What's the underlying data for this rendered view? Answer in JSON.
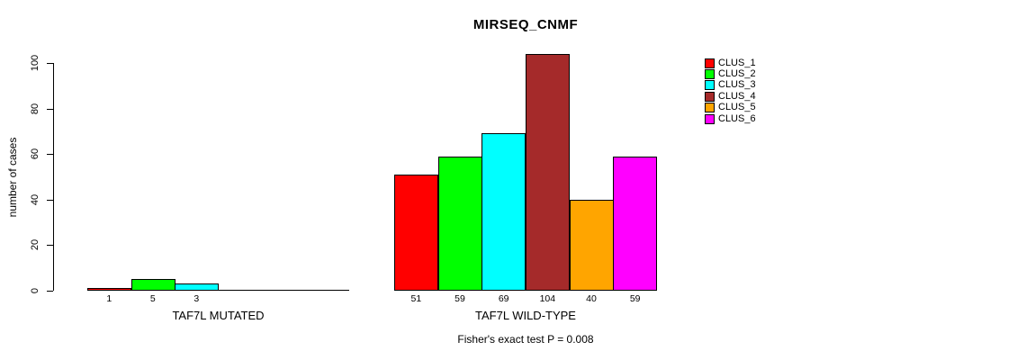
{
  "chart_data": {
    "type": "bar",
    "title": "MIRSEQ_CNMF",
    "ylabel": "number of cases",
    "ylim": [
      0,
      100
    ],
    "yticks": [
      0,
      20,
      40,
      60,
      80,
      100
    ],
    "grid": false,
    "legend_position": "right",
    "legend": [
      {
        "label": "CLUS_1",
        "color": "#FF0000"
      },
      {
        "label": "CLUS_2",
        "color": "#00FF00"
      },
      {
        "label": "CLUS_3",
        "color": "#00FFFF"
      },
      {
        "label": "CLUS_4",
        "color": "#A52A2A"
      },
      {
        "label": "CLUS_5",
        "color": "#FFA500"
      },
      {
        "label": "CLUS_6",
        "color": "#FF00FF"
      }
    ],
    "groups": [
      {
        "label": "TAF7L MUTATED",
        "values": [
          1,
          5,
          3,
          0,
          0,
          0
        ],
        "bar_labels": [
          "1",
          "5",
          "3",
          "",
          "",
          ""
        ]
      },
      {
        "label": "TAF7L WILD-TYPE",
        "values": [
          51,
          59,
          69,
          104,
          40,
          59
        ],
        "bar_labels": [
          "51",
          "59",
          "69",
          "104",
          "40",
          "59"
        ]
      }
    ],
    "annotation": "Fisher's exact test P = 0.008"
  }
}
